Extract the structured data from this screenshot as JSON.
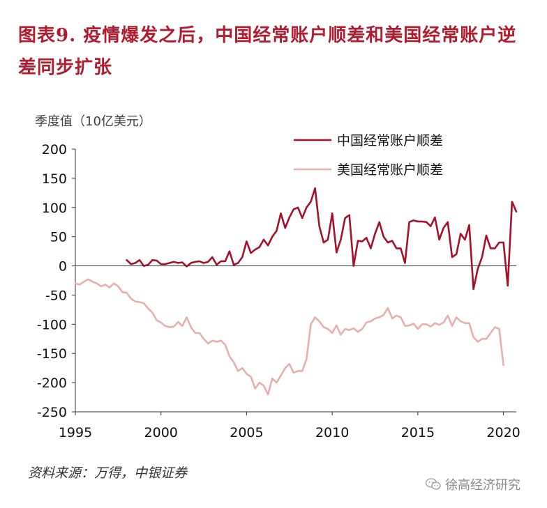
{
  "title": "图表9. 疫情爆发之后，中国经常账户顺差和美国经常账户逆差同步扩张",
  "source": "资料来源：万得，中银证券",
  "watermark": "徐高经济研究",
  "chart_data": {
    "type": "line",
    "ylabel": "季度值（10亿美元）",
    "ylim": [
      -250,
      200
    ],
    "yticks": [
      200,
      150,
      100,
      50,
      0,
      -50,
      -100,
      -150,
      -200,
      -250
    ],
    "xlim": [
      1995,
      2020.75
    ],
    "xticks": [
      1995,
      2000,
      2005,
      2010,
      2015,
      2020
    ],
    "grid": false,
    "legend_position": "top-right",
    "colors": {
      "china": "#a3122a",
      "us": "#e6b0ae"
    },
    "series": [
      {
        "name": "中国经常账户顺差",
        "x_start": 1998.0,
        "step": 0.25,
        "values": [
          10,
          3,
          5,
          10,
          0,
          2,
          10,
          9,
          3,
          3,
          5,
          7,
          5,
          6,
          -1,
          5,
          7,
          8,
          5,
          7,
          15,
          2,
          8,
          8,
          25,
          2,
          5,
          15,
          42,
          22,
          28,
          32,
          45,
          35,
          50,
          60,
          90,
          65,
          83,
          97,
          100,
          82,
          100,
          110,
          133,
          68,
          40,
          45,
          90,
          23,
          45,
          82,
          87,
          0,
          43,
          42,
          48,
          30,
          55,
          75,
          50,
          40,
          43,
          30,
          30,
          5,
          75,
          78,
          76,
          76,
          75,
          68,
          83,
          45,
          65,
          75,
          15,
          20,
          55,
          45,
          70,
          -40,
          -5,
          15,
          52,
          30,
          30,
          40,
          40,
          -34,
          110,
          93
        ]
      },
      {
        "name": "美国经常账户顺差",
        "x_start": 1995.0,
        "step": 0.25,
        "values": [
          -30,
          -32,
          -27,
          -23,
          -27,
          -30,
          -35,
          -32,
          -37,
          -30,
          -35,
          -45,
          -46,
          -56,
          -61,
          -62,
          -64,
          -73,
          -80,
          -93,
          -97,
          -103,
          -105,
          -104,
          -96,
          -103,
          -88,
          -105,
          -115,
          -115,
          -125,
          -133,
          -128,
          -130,
          -128,
          -135,
          -155,
          -165,
          -180,
          -175,
          -185,
          -190,
          -210,
          -200,
          -205,
          -220,
          -193,
          -200,
          -188,
          -175,
          -168,
          -183,
          -180,
          -180,
          -160,
          -100,
          -88,
          -95,
          -105,
          -108,
          -115,
          -102,
          -118,
          -108,
          -110,
          -107,
          -113,
          -108,
          -97,
          -95,
          -90,
          -88,
          -84,
          -72,
          -90,
          -85,
          -88,
          -103,
          -102,
          -99,
          -108,
          -100,
          -100,
          -104,
          -98,
          -101,
          -97,
          -85,
          -103,
          -88,
          -95,
          -98,
          -98,
          -122,
          -130,
          -125,
          -125,
          -115,
          -105,
          -108,
          -170
        ]
      }
    ]
  }
}
